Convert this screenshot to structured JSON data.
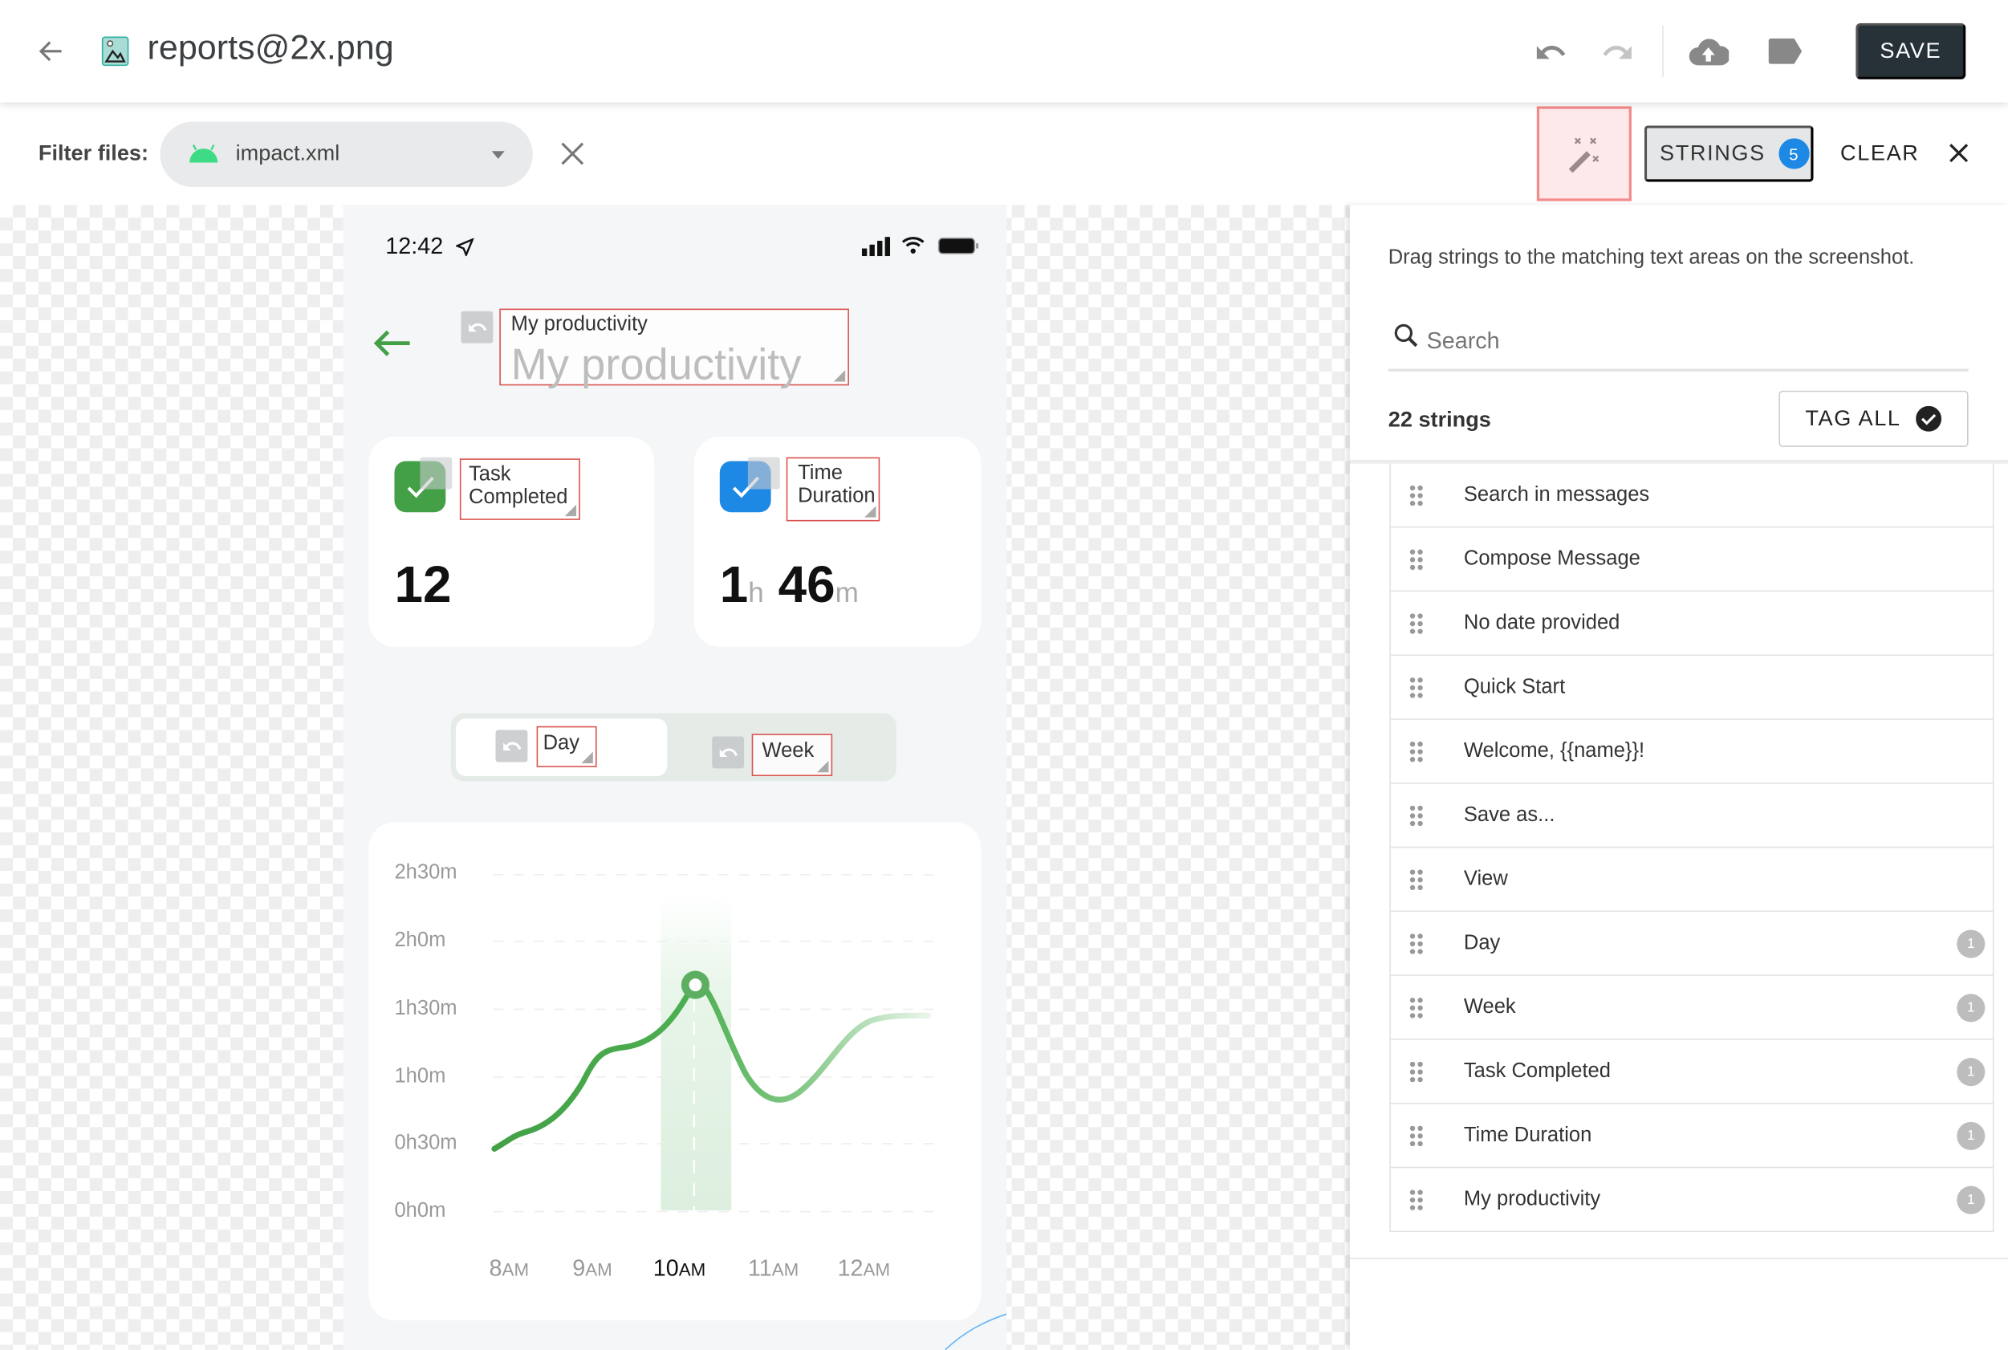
{
  "header": {
    "title": "reports@2x.png",
    "save_label": "SAVE"
  },
  "toolbar": {
    "filter_label": "Filter files:",
    "selected_file": "impact.xml",
    "strings_label": "STRINGS",
    "strings_count": "5",
    "clear_label": "CLEAR"
  },
  "phone": {
    "time": "12:42",
    "title_tag": "My productivity",
    "title": "My productivity",
    "card1": {
      "tag_line1": "Task",
      "tag_line2": "Completed",
      "value": "12"
    },
    "card2": {
      "tag_line1": "Time",
      "tag_line2": "Duration",
      "hours": "1",
      "h_unit": "h",
      "minutes": "46",
      "m_unit": "m"
    },
    "segments": {
      "day": "Day",
      "week": "Week",
      "selected": "Day"
    },
    "chart": {
      "y_labels": [
        "2h30m",
        "2h0m",
        "1h30m",
        "1h0m",
        "0h30m",
        "0h0m"
      ],
      "x_labels": [
        {
          "n": "8",
          "s": "AM"
        },
        {
          "n": "9",
          "s": "AM"
        },
        {
          "n": "10",
          "s": "AM"
        },
        {
          "n": "11",
          "s": "AM"
        },
        {
          "n": "12",
          "s": "AM"
        }
      ],
      "highlighted": "10AM",
      "line_color": "#43a047"
    }
  },
  "panel": {
    "hint": "Drag strings to the matching text areas on the screenshot.",
    "search_placeholder": "Search",
    "count_label": "22 strings",
    "tag_all_label": "TAG ALL",
    "items": [
      {
        "label": "Search in messages",
        "count": ""
      },
      {
        "label": "Compose Message",
        "count": ""
      },
      {
        "label": "No date provided",
        "count": ""
      },
      {
        "label": "Quick Start",
        "count": ""
      },
      {
        "label": "Welcome, {{name}}!",
        "count": ""
      },
      {
        "label": "Save as...",
        "count": ""
      },
      {
        "label": "View",
        "count": ""
      },
      {
        "label": "Day",
        "count": "1"
      },
      {
        "label": "Week",
        "count": "1"
      },
      {
        "label": "Task Completed",
        "count": "1"
      },
      {
        "label": "Time Duration",
        "count": "1"
      },
      {
        "label": "My productivity",
        "count": "1"
      }
    ]
  },
  "colors": {
    "save_bg": "#263238",
    "badge_blue": "#1e88e5",
    "tag_border": "#d9534f",
    "green": "#43a047",
    "blue": "#1e88e5"
  }
}
